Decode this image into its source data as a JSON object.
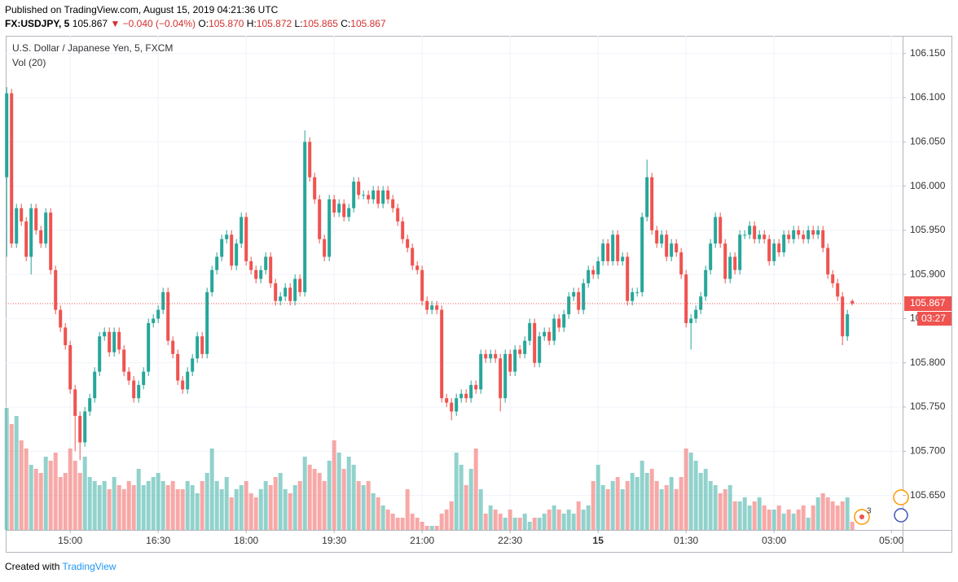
{
  "header": {
    "published": "Published on TradingView.com, August 15, 2019 04:21:36 UTC",
    "symbol": "FX:USDJPY, 5",
    "last": "105.867",
    "change": "▼ −0.040 (−0.04%)",
    "o_label": "O:",
    "o": "105.870",
    "h_label": "H:",
    "h": "105.872",
    "l_label": "L:",
    "l": "105.865",
    "c_label": "C:",
    "c": "105.867"
  },
  "chart_data": {
    "type": "candlestick",
    "title": "U.S. Dollar / Japanese Yen, 5, FXCM",
    "indicator": "Vol (20)",
    "up_color": "#26a69a",
    "down_color": "#ef5350",
    "countdown": "03:27",
    "alerts": "3",
    "grid": true,
    "xlim": [
      -0.2,
      183.3
    ],
    "xticks": [
      {
        "value": 13,
        "label": "15:00"
      },
      {
        "value": 31,
        "label": "16:30"
      },
      {
        "value": 49,
        "label": "18:00"
      },
      {
        "value": 67,
        "label": "19:30"
      },
      {
        "value": 85,
        "label": "21:00"
      },
      {
        "value": 103,
        "label": "22:30"
      },
      {
        "value": 121,
        "label": "15"
      },
      {
        "value": 139,
        "label": "01:30"
      },
      {
        "value": 157,
        "label": "03:00"
      },
      {
        "value": 181,
        "label": "05:00"
      }
    ],
    "ylim": [
      105.611,
      106.17
    ],
    "yticks": [
      {
        "value": 105.65,
        "label": "105.650"
      },
      {
        "value": 105.7,
        "label": "105.700"
      },
      {
        "value": 105.75,
        "label": "105.750"
      },
      {
        "value": 105.8,
        "label": "105.800"
      },
      {
        "value": 105.85,
        "label": "105.850"
      },
      {
        "value": 105.9,
        "label": "105.900"
      },
      {
        "value": 105.95,
        "label": "105.950"
      },
      {
        "value": 106,
        "label": "106.000"
      },
      {
        "value": 106.05,
        "label": "106.050"
      },
      {
        "value": 106.1,
        "label": "106.100"
      },
      {
        "value": 106.15,
        "label": "106.150"
      }
    ],
    "vlim": [
      0,
      150
    ],
    "ohlc": [
      [
        106.01,
        106.112,
        105.92,
        106.105
      ],
      [
        106.105,
        106.11,
        105.93,
        105.935
      ],
      [
        105.935,
        105.98,
        105.93,
        105.975
      ],
      [
        105.975,
        105.98,
        105.955,
        105.96
      ],
      [
        105.96,
        105.965,
        105.915,
        105.92
      ],
      [
        105.92,
        105.98,
        105.9,
        105.975
      ],
      [
        105.975,
        105.98,
        105.945,
        105.95
      ],
      [
        105.95,
        105.955,
        105.93,
        105.935
      ],
      [
        105.935,
        105.975,
        105.93,
        105.97
      ],
      [
        105.97,
        105.975,
        105.9,
        105.905
      ],
      [
        105.905,
        105.91,
        105.855,
        105.86
      ],
      [
        105.86,
        105.865,
        105.835,
        105.84
      ],
      [
        105.84,
        105.845,
        105.815,
        105.82
      ],
      [
        105.82,
        105.825,
        105.765,
        105.77
      ],
      [
        105.77,
        105.775,
        105.7,
        105.74
      ],
      [
        105.74,
        105.745,
        105.69,
        105.71
      ],
      [
        105.71,
        105.75,
        105.705,
        105.745
      ],
      [
        105.745,
        105.765,
        105.74,
        105.76
      ],
      [
        105.76,
        105.795,
        105.755,
        105.79
      ],
      [
        105.79,
        105.835,
        105.785,
        105.83
      ],
      [
        105.83,
        105.84,
        105.825,
        105.835
      ],
      [
        105.835,
        105.84,
        105.807,
        105.812
      ],
      [
        105.812,
        105.84,
        105.807,
        105.835
      ],
      [
        105.835,
        105.84,
        105.81,
        105.815
      ],
      [
        105.815,
        105.82,
        105.785,
        105.79
      ],
      [
        105.79,
        105.795,
        105.775,
        105.78
      ],
      [
        105.78,
        105.785,
        105.755,
        105.76
      ],
      [
        105.76,
        105.78,
        105.755,
        105.775
      ],
      [
        105.775,
        105.795,
        105.77,
        105.79
      ],
      [
        105.79,
        105.85,
        105.785,
        105.845
      ],
      [
        105.845,
        105.855,
        105.84,
        105.85
      ],
      [
        105.85,
        105.865,
        105.845,
        105.86
      ],
      [
        105.86,
        105.885,
        105.855,
        105.88
      ],
      [
        105.88,
        105.885,
        105.82,
        105.825
      ],
      [
        105.825,
        105.83,
        105.805,
        105.81
      ],
      [
        105.81,
        105.815,
        105.775,
        105.78
      ],
      [
        105.78,
        105.785,
        105.765,
        105.77
      ],
      [
        105.77,
        105.795,
        105.765,
        105.79
      ],
      [
        105.79,
        105.81,
        105.785,
        105.805
      ],
      [
        105.805,
        105.835,
        105.8,
        105.83
      ],
      [
        105.83,
        105.835,
        105.805,
        105.81
      ],
      [
        105.81,
        105.885,
        105.805,
        105.88
      ],
      [
        105.88,
        105.91,
        105.875,
        105.905
      ],
      [
        105.905,
        105.925,
        105.9,
        105.92
      ],
      [
        105.92,
        105.945,
        105.915,
        105.94
      ],
      [
        105.94,
        105.95,
        105.935,
        105.945
      ],
      [
        105.945,
        105.95,
        105.905,
        105.91
      ],
      [
        105.91,
        105.94,
        105.905,
        105.935
      ],
      [
        105.935,
        105.97,
        105.93,
        105.965
      ],
      [
        105.965,
        105.97,
        105.91,
        105.915
      ],
      [
        105.915,
        105.92,
        105.9,
        105.905
      ],
      [
        105.905,
        105.91,
        105.89,
        105.895
      ],
      [
        105.895,
        105.91,
        105.89,
        105.905
      ],
      [
        105.905,
        105.925,
        105.9,
        105.92
      ],
      [
        105.92,
        105.925,
        105.885,
        105.89
      ],
      [
        105.89,
        105.895,
        105.865,
        105.87
      ],
      [
        105.87,
        105.88,
        105.865,
        105.875
      ],
      [
        105.875,
        105.89,
        105.87,
        105.885
      ],
      [
        105.885,
        105.89,
        105.865,
        105.87
      ],
      [
        105.87,
        105.9,
        105.865,
        105.895
      ],
      [
        105.895,
        105.9,
        105.875,
        105.88
      ],
      [
        105.88,
        106.063,
        105.875,
        106.05
      ],
      [
        106.05,
        106.055,
        106.005,
        106.01
      ],
      [
        106.01,
        106.015,
        105.98,
        105.985
      ],
      [
        105.985,
        105.99,
        105.935,
        105.94
      ],
      [
        105.94,
        105.945,
        105.915,
        105.92
      ],
      [
        105.92,
        105.99,
        105.915,
        105.985
      ],
      [
        105.985,
        105.99,
        105.965,
        105.97
      ],
      [
        105.97,
        105.985,
        105.965,
        105.98
      ],
      [
        105.98,
        105.985,
        105.96,
        105.965
      ],
      [
        105.965,
        105.98,
        105.96,
        105.975
      ],
      [
        105.975,
        106.01,
        105.97,
        106.005
      ],
      [
        106.005,
        106.01,
        105.985,
        105.99
      ],
      [
        105.99,
        105.995,
        105.985,
        105.99
      ],
      [
        105.99,
        105.995,
        105.98,
        105.985
      ],
      [
        105.985,
        106.0,
        105.98,
        105.995
      ],
      [
        105.995,
        106.0,
        105.975,
        105.98
      ],
      [
        105.98,
        106.0,
        105.975,
        105.995
      ],
      [
        105.995,
        106.0,
        105.98,
        105.985
      ],
      [
        105.985,
        105.99,
        105.97,
        105.975
      ],
      [
        105.975,
        105.98,
        105.955,
        105.96
      ],
      [
        105.96,
        105.965,
        105.935,
        105.94
      ],
      [
        105.94,
        105.945,
        105.925,
        105.93
      ],
      [
        105.93,
        105.935,
        105.905,
        105.91
      ],
      [
        105.91,
        105.915,
        105.9,
        105.905
      ],
      [
        105.905,
        105.91,
        105.865,
        105.87
      ],
      [
        105.87,
        105.875,
        105.855,
        105.86
      ],
      [
        105.86,
        105.87,
        105.855,
        105.865
      ],
      [
        105.865,
        105.87,
        105.855,
        105.86
      ],
      [
        105.86,
        105.865,
        105.755,
        105.76
      ],
      [
        105.76,
        105.765,
        105.75,
        105.755
      ],
      [
        105.755,
        105.76,
        105.735,
        105.745
      ],
      [
        105.745,
        105.765,
        105.74,
        105.76
      ],
      [
        105.76,
        105.77,
        105.755,
        105.765
      ],
      [
        105.765,
        105.77,
        105.755,
        105.76
      ],
      [
        105.76,
        105.78,
        105.755,
        105.775
      ],
      [
        105.775,
        105.78,
        105.765,
        105.77
      ],
      [
        105.77,
        105.815,
        105.765,
        105.81
      ],
      [
        105.81,
        105.815,
        105.8,
        105.805
      ],
      [
        105.805,
        105.815,
        105.8,
        105.81
      ],
      [
        105.81,
        105.815,
        105.8,
        105.805
      ],
      [
        105.805,
        105.81,
        105.745,
        105.76
      ],
      [
        105.76,
        105.815,
        105.755,
        105.81
      ],
      [
        105.81,
        105.815,
        105.785,
        105.79
      ],
      [
        105.79,
        105.82,
        105.785,
        105.815
      ],
      [
        105.815,
        105.82,
        105.805,
        105.81
      ],
      [
        105.81,
        105.83,
        105.805,
        105.825
      ],
      [
        105.825,
        105.85,
        105.82,
        105.845
      ],
      [
        105.845,
        105.85,
        105.795,
        105.8
      ],
      [
        105.8,
        105.835,
        105.795,
        105.83
      ],
      [
        105.83,
        105.84,
        105.825,
        105.835
      ],
      [
        105.835,
        105.84,
        105.82,
        105.825
      ],
      [
        105.825,
        105.855,
        105.82,
        105.85
      ],
      [
        105.85,
        105.855,
        105.835,
        105.84
      ],
      [
        105.84,
        105.86,
        105.835,
        105.855
      ],
      [
        105.855,
        105.88,
        105.85,
        105.875
      ],
      [
        105.875,
        105.885,
        105.87,
        105.88
      ],
      [
        105.88,
        105.885,
        105.855,
        105.86
      ],
      [
        105.86,
        105.895,
        105.855,
        105.89
      ],
      [
        105.89,
        105.91,
        105.885,
        105.905
      ],
      [
        105.905,
        105.91,
        105.895,
        105.9
      ],
      [
        105.9,
        105.92,
        105.895,
        105.915
      ],
      [
        105.915,
        105.94,
        105.91,
        105.935
      ],
      [
        105.935,
        105.94,
        105.91,
        105.915
      ],
      [
        105.915,
        105.95,
        105.91,
        105.945
      ],
      [
        105.945,
        105.95,
        105.91,
        105.915
      ],
      [
        105.915,
        105.925,
        105.91,
        105.92
      ],
      [
        105.92,
        105.925,
        105.865,
        105.87
      ],
      [
        105.87,
        105.885,
        105.865,
        105.88
      ],
      [
        105.88,
        105.885,
        105.875,
        105.88
      ],
      [
        105.88,
        105.97,
        105.875,
        105.965
      ],
      [
        105.965,
        106.03,
        105.96,
        106.01
      ],
      [
        106.01,
        106.015,
        105.945,
        105.95
      ],
      [
        105.95,
        105.955,
        105.93,
        105.935
      ],
      [
        105.935,
        105.95,
        105.93,
        105.945
      ],
      [
        105.945,
        105.95,
        105.915,
        105.92
      ],
      [
        105.92,
        105.94,
        105.915,
        105.935
      ],
      [
        105.935,
        105.94,
        105.92,
        105.925
      ],
      [
        105.925,
        105.93,
        105.895,
        105.9
      ],
      [
        105.9,
        105.905,
        105.84,
        105.845
      ],
      [
        105.845,
        105.855,
        105.815,
        105.85
      ],
      [
        105.85,
        105.865,
        105.845,
        105.86
      ],
      [
        105.86,
        105.88,
        105.855,
        105.875
      ],
      [
        105.875,
        105.91,
        105.87,
        105.905
      ],
      [
        105.905,
        105.94,
        105.9,
        105.935
      ],
      [
        105.935,
        105.97,
        105.93,
        105.965
      ],
      [
        105.965,
        105.97,
        105.93,
        105.935
      ],
      [
        105.935,
        105.94,
        105.89,
        105.895
      ],
      [
        105.895,
        105.925,
        105.89,
        105.92
      ],
      [
        105.92,
        105.925,
        105.9,
        105.905
      ],
      [
        105.905,
        105.95,
        105.9,
        105.945
      ],
      [
        105.945,
        105.95,
        105.94,
        105.945
      ],
      [
        105.945,
        105.96,
        105.94,
        105.955
      ],
      [
        105.955,
        105.96,
        105.935,
        105.94
      ],
      [
        105.94,
        105.95,
        105.935,
        105.945
      ],
      [
        105.945,
        105.95,
        105.935,
        105.94
      ],
      [
        105.94,
        105.945,
        105.91,
        105.915
      ],
      [
        105.915,
        105.94,
        105.91,
        105.935
      ],
      [
        105.935,
        105.94,
        105.92,
        105.925
      ],
      [
        105.925,
        105.95,
        105.92,
        105.945
      ],
      [
        105.945,
        105.95,
        105.935,
        105.94
      ],
      [
        105.94,
        105.955,
        105.935,
        105.95
      ],
      [
        105.95,
        105.955,
        105.94,
        105.945
      ],
      [
        105.945,
        105.95,
        105.935,
        105.94
      ],
      [
        105.94,
        105.955,
        105.935,
        105.95
      ],
      [
        105.95,
        105.955,
        105.94,
        105.945
      ],
      [
        105.945,
        105.955,
        105.94,
        105.95
      ],
      [
        105.95,
        105.955,
        105.925,
        105.93
      ],
      [
        105.93,
        105.935,
        105.895,
        105.9
      ],
      [
        105.9,
        105.905,
        105.885,
        105.89
      ],
      [
        105.89,
        105.895,
        105.87,
        105.875
      ],
      [
        105.875,
        105.88,
        105.82,
        105.83
      ],
      [
        105.83,
        105.86,
        105.825,
        105.855
      ],
      [
        105.87,
        105.872,
        105.865,
        105.867
      ]
    ],
    "volume": [
      150,
      130,
      140,
      110,
      100,
      80,
      75,
      70,
      90,
      85,
      95,
      65,
      70,
      100,
      85,
      70,
      90,
      65,
      60,
      55,
      60,
      50,
      65,
      55,
      50,
      60,
      55,
      75,
      55,
      60,
      65,
      70,
      60,
      55,
      60,
      50,
      50,
      60,
      55,
      45,
      60,
      70,
      100,
      60,
      50,
      65,
      40,
      50,
      55,
      60,
      45,
      40,
      50,
      60,
      55,
      65,
      70,
      50,
      45,
      55,
      60,
      90,
      80,
      75,
      70,
      60,
      85,
      110,
      95,
      75,
      90,
      80,
      60,
      55,
      60,
      45,
      40,
      30,
      25,
      20,
      15,
      15,
      50,
      20,
      15,
      10,
      5,
      5,
      5,
      20,
      25,
      35,
      95,
      80,
      55,
      75,
      100,
      50,
      20,
      30,
      25,
      20,
      15,
      25,
      15,
      15,
      20,
      10,
      15,
      15,
      20,
      25,
      30,
      25,
      20,
      25,
      20,
      35,
      25,
      30,
      60,
      80,
      55,
      50,
      60,
      65,
      50,
      60,
      70,
      65,
      85,
      70,
      75,
      60,
      50,
      55,
      65,
      50,
      65,
      100,
      95,
      85,
      70,
      75,
      60,
      55,
      45,
      50,
      55,
      35,
      35,
      40,
      30,
      35,
      40,
      30,
      25,
      25,
      30,
      20,
      25,
      20,
      25,
      30,
      15,
      30,
      40,
      45,
      40,
      35,
      30,
      35,
      40,
      10
    ]
  },
  "footer": {
    "created": "Created with",
    "brand": "TradingView"
  }
}
